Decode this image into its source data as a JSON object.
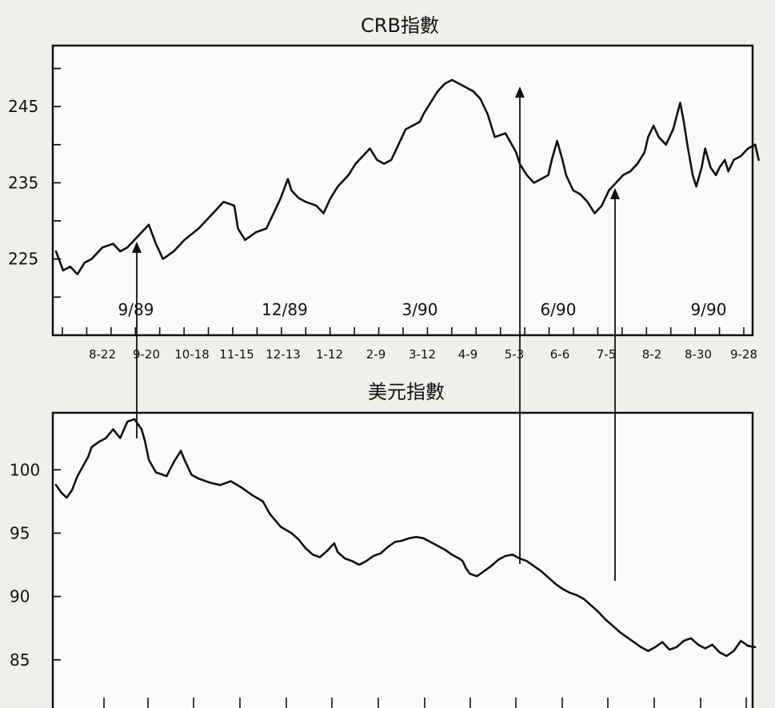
{
  "chart_data": [
    {
      "type": "line",
      "title": "CRB指數",
      "yticks": [
        225,
        235,
        245
      ],
      "ylim": [
        215,
        253
      ],
      "month_labels": [
        "9/89",
        "12/89",
        "3/90",
        "6/90",
        "9/90"
      ],
      "date_labels": [
        "8-22",
        "9-20",
        "10-18",
        "11-15",
        "12-13",
        "1-12",
        "2-9",
        "3-12",
        "4-9",
        "5-3",
        "6-6",
        "7-5",
        "8-2",
        "8-30",
        "9-28"
      ],
      "series": [
        {
          "points": [
            [
              0,
              226
            ],
            [
              0.2,
              223.5
            ],
            [
              0.4,
              224
            ],
            [
              0.6,
              223
            ],
            [
              0.8,
              224.5
            ],
            [
              1,
              225
            ],
            [
              1.3,
              226.5
            ],
            [
              1.6,
              227
            ],
            [
              1.8,
              226
            ],
            [
              2,
              226.5
            ],
            [
              2.3,
              228
            ],
            [
              2.6,
              229.5
            ],
            [
              2.8,
              227
            ],
            [
              3,
              225
            ],
            [
              3.3,
              226
            ],
            [
              3.6,
              227.5
            ],
            [
              4,
              229
            ],
            [
              4.4,
              231
            ],
            [
              4.7,
              232.5
            ],
            [
              5,
              232
            ],
            [
              5.1,
              229
            ],
            [
              5.3,
              227.5
            ],
            [
              5.6,
              228.5
            ],
            [
              5.9,
              229
            ],
            [
              6.1,
              231
            ],
            [
              6.3,
              233
            ],
            [
              6.5,
              235.5
            ],
            [
              6.6,
              234
            ],
            [
              6.8,
              233
            ],
            [
              7,
              232.5
            ],
            [
              7.3,
              232
            ],
            [
              7.5,
              231
            ],
            [
              7.7,
              233
            ],
            [
              7.9,
              234.5
            ],
            [
              8.2,
              236
            ],
            [
              8.4,
              237.5
            ],
            [
              8.6,
              238.5
            ],
            [
              8.8,
              239.5
            ],
            [
              9,
              238
            ],
            [
              9.2,
              237.5
            ],
            [
              9.4,
              238
            ],
            [
              9.6,
              240
            ],
            [
              9.8,
              242
            ],
            [
              10,
              242.5
            ],
            [
              10.2,
              243
            ],
            [
              10.3,
              244
            ],
            [
              10.5,
              245.5
            ],
            [
              10.7,
              247
            ],
            [
              10.9,
              248
            ],
            [
              11.1,
              248.5
            ],
            [
              11.3,
              248
            ],
            [
              11.5,
              247.5
            ],
            [
              11.7,
              247
            ],
            [
              11.9,
              246
            ],
            [
              12.1,
              244
            ],
            [
              12.3,
              241
            ],
            [
              12.6,
              241.5
            ],
            [
              12.9,
              239
            ],
            [
              13,
              237.5
            ],
            [
              13.2,
              236
            ],
            [
              13.4,
              235
            ],
            [
              13.6,
              235.5
            ],
            [
              13.8,
              236
            ],
            [
              13.9,
              238
            ],
            [
              14.05,
              240.5
            ],
            [
              14.2,
              238
            ],
            [
              14.3,
              236
            ],
            [
              14.5,
              234
            ],
            [
              14.7,
              233.5
            ],
            [
              14.9,
              232.5
            ],
            [
              15.1,
              231
            ],
            [
              15.3,
              232
            ],
            [
              15.5,
              234
            ],
            [
              15.7,
              235
            ],
            [
              15.9,
              236
            ],
            [
              16.1,
              236.5
            ],
            [
              16.3,
              237.5
            ],
            [
              16.5,
              239
            ],
            [
              16.6,
              241
            ],
            [
              16.75,
              242.5
            ],
            [
              16.9,
              241
            ],
            [
              17.1,
              240
            ],
            [
              17.3,
              242
            ],
            [
              17.5,
              245.5
            ],
            [
              17.6,
              243
            ],
            [
              17.7,
              240
            ],
            [
              17.85,
              236
            ],
            [
              17.95,
              234.5
            ],
            [
              18.1,
              237
            ],
            [
              18.2,
              239.5
            ],
            [
              18.35,
              237
            ],
            [
              18.5,
              236
            ],
            [
              18.6,
              237
            ],
            [
              18.75,
              238
            ],
            [
              18.85,
              236.5
            ],
            [
              19,
              238
            ],
            [
              19.2,
              238.5
            ],
            [
              19.4,
              239.5
            ],
            [
              19.6,
              240
            ],
            [
              19.7,
              238
            ]
          ]
        }
      ]
    },
    {
      "type": "line",
      "title": "美元指數",
      "yticks": [
        85,
        90,
        95,
        100
      ],
      "ylim": [
        80.5,
        104.5
      ],
      "series": [
        {
          "points": [
            [
              0,
              98.8
            ],
            [
              0.15,
              98.2
            ],
            [
              0.3,
              97.8
            ],
            [
              0.45,
              98.4
            ],
            [
              0.6,
              99.5
            ],
            [
              0.8,
              100.5
            ],
            [
              0.9,
              101
            ],
            [
              1,
              101.8
            ],
            [
              1.2,
              102.2
            ],
            [
              1.4,
              102.5
            ],
            [
              1.6,
              103.2
            ],
            [
              1.8,
              102.5
            ],
            [
              2,
              103.8
            ],
            [
              2.2,
              104
            ],
            [
              2.4,
              103.2
            ],
            [
              2.5,
              102.2
            ],
            [
              2.6,
              100.8
            ],
            [
              2.8,
              99.8
            ],
            [
              3.1,
              99.5
            ],
            [
              3.3,
              100.6
            ],
            [
              3.5,
              101.5
            ],
            [
              3.6,
              100.8
            ],
            [
              3.8,
              99.6
            ],
            [
              4,
              99.3
            ],
            [
              4.3,
              99
            ],
            [
              4.6,
              98.8
            ],
            [
              4.9,
              99.1
            ],
            [
              5.2,
              98.6
            ],
            [
              5.5,
              98
            ],
            [
              5.8,
              97.5
            ],
            [
              6,
              96.5
            ],
            [
              6.3,
              95.5
            ],
            [
              6.6,
              95
            ],
            [
              6.8,
              94.5
            ],
            [
              7,
              93.8
            ],
            [
              7.2,
              93.3
            ],
            [
              7.4,
              93.1
            ],
            [
              7.6,
              93.6
            ],
            [
              7.8,
              94.2
            ],
            [
              7.9,
              93.5
            ],
            [
              8.1,
              93
            ],
            [
              8.3,
              92.8
            ],
            [
              8.5,
              92.5
            ],
            [
              8.7,
              92.8
            ],
            [
              8.9,
              93.2
            ],
            [
              9.1,
              93.4
            ],
            [
              9.3,
              93.9
            ],
            [
              9.5,
              94.3
            ],
            [
              9.7,
              94.4
            ],
            [
              9.9,
              94.6
            ],
            [
              10.1,
              94.7
            ],
            [
              10.3,
              94.6
            ],
            [
              10.5,
              94.3
            ],
            [
              10.7,
              94
            ],
            [
              10.9,
              93.7
            ],
            [
              11.1,
              93.3
            ],
            [
              11.3,
              93
            ],
            [
              11.4,
              92.8
            ],
            [
              11.5,
              92.2
            ],
            [
              11.6,
              91.8
            ],
            [
              11.8,
              91.6
            ],
            [
              12,
              92
            ],
            [
              12.2,
              92.4
            ],
            [
              12.4,
              92.9
            ],
            [
              12.6,
              93.2
            ],
            [
              12.8,
              93.3
            ],
            [
              13,
              93
            ],
            [
              13.2,
              92.8
            ],
            [
              13.4,
              92.4
            ],
            [
              13.6,
              92
            ],
            [
              13.8,
              91.5
            ],
            [
              14,
              91
            ],
            [
              14.2,
              90.6
            ],
            [
              14.4,
              90.3
            ],
            [
              14.6,
              90.1
            ],
            [
              14.8,
              89.8
            ],
            [
              15,
              89.3
            ],
            [
              15.2,
              88.8
            ],
            [
              15.4,
              88.2
            ],
            [
              15.6,
              87.7
            ],
            [
              15.8,
              87.2
            ],
            [
              16,
              86.8
            ],
            [
              16.2,
              86.4
            ],
            [
              16.4,
              86
            ],
            [
              16.6,
              85.7
            ],
            [
              16.8,
              86
            ],
            [
              17,
              86.4
            ],
            [
              17.2,
              85.8
            ],
            [
              17.4,
              86
            ],
            [
              17.6,
              86.5
            ],
            [
              17.8,
              86.7
            ],
            [
              18,
              86.2
            ],
            [
              18.2,
              85.9
            ],
            [
              18.4,
              86.2
            ],
            [
              18.6,
              85.6
            ],
            [
              18.8,
              85.3
            ],
            [
              19,
              85.7
            ],
            [
              19.2,
              86.5
            ],
            [
              19.4,
              86.1
            ],
            [
              19.6,
              86
            ]
          ]
        }
      ]
    }
  ]
}
